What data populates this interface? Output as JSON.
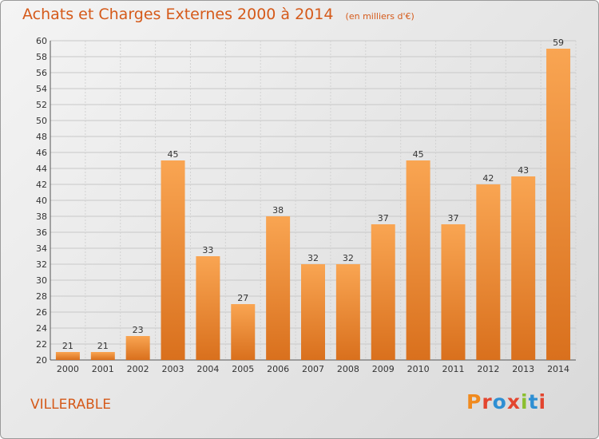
{
  "header": {
    "title": "Achats et Charges Externes 2000 à 2014",
    "unit": "(en milliers d'€)"
  },
  "footer": {
    "commune": "VILLERABLE",
    "brand": "Proxiti"
  },
  "colors": {
    "accent": "#d55a1a",
    "bar_light": "#f9a552",
    "bar_dark": "#d9701d",
    "brand_letters": [
      "#f08a1e",
      "#e3452f",
      "#2e8fd3",
      "#e3452f",
      "#8bbf2f",
      "#2e8fd3",
      "#e3452f"
    ]
  },
  "chart_data": {
    "type": "bar",
    "title": "Achats et Charges Externes 2000 à 2014",
    "subtitle": "(en milliers d'€)",
    "xlabel": "",
    "ylabel": "",
    "categories": [
      "2000",
      "2001",
      "2002",
      "2003",
      "2004",
      "2005",
      "2006",
      "2007",
      "2008",
      "2009",
      "2010",
      "2011",
      "2012",
      "2013",
      "2014"
    ],
    "values": [
      21,
      21,
      23,
      45,
      33,
      27,
      38,
      32,
      32,
      37,
      45,
      37,
      42,
      43,
      59
    ],
    "ylim": [
      20,
      60
    ],
    "yticks": [
      20,
      22,
      24,
      26,
      28,
      30,
      32,
      34,
      36,
      38,
      40,
      42,
      44,
      46,
      48,
      50,
      52,
      54,
      56,
      58,
      60
    ],
    "grid": true,
    "legend": "none"
  }
}
